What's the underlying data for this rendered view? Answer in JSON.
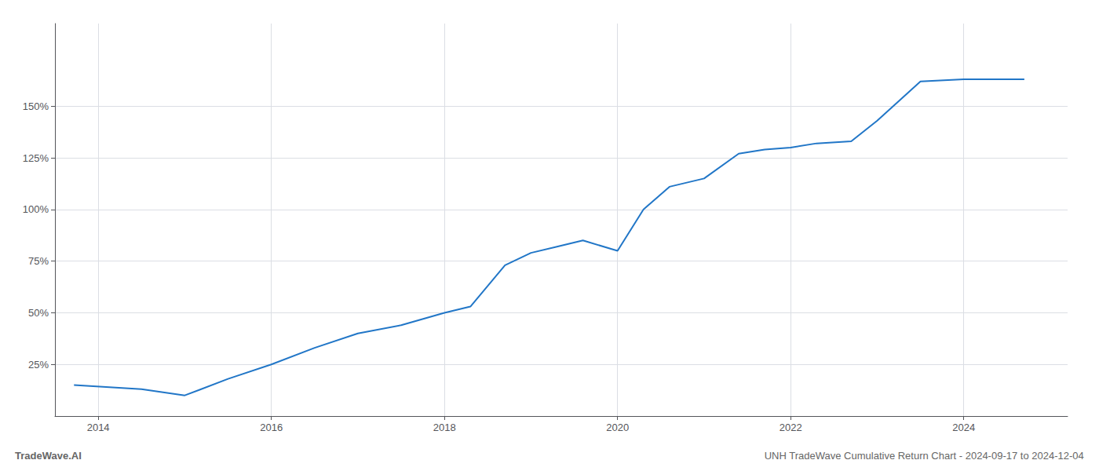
{
  "chart_data": {
    "type": "line",
    "title": "UNH TradeWave Cumulative Return Chart - 2024-09-17 to 2024-12-04",
    "annotations": [
      "TradeWave.AI"
    ],
    "x": [
      2013.72,
      2014.5,
      2015.0,
      2015.5,
      2016.0,
      2016.5,
      2017.0,
      2017.5,
      2018.0,
      2018.3,
      2018.7,
      2019.0,
      2019.3,
      2019.6,
      2020.0,
      2020.3,
      2020.6,
      2021.0,
      2021.4,
      2021.7,
      2022.0,
      2022.3,
      2022.7,
      2023.0,
      2023.5,
      2024.0,
      2024.7
    ],
    "values": [
      15,
      13,
      10,
      18,
      25,
      33,
      40,
      44,
      50,
      53,
      73,
      79,
      82,
      85,
      80,
      100,
      111,
      115,
      127,
      129,
      130,
      132,
      133,
      143,
      162,
      163,
      163
    ],
    "color": "#2176C7",
    "xlim": [
      2013.5,
      2025.2
    ],
    "ylim": [
      0,
      190
    ],
    "xticks": [
      2014,
      2016,
      2018,
      2020,
      2022,
      2024
    ],
    "yticks": [
      {
        "value": 25,
        "label": "25%"
      },
      {
        "value": 50,
        "label": "50%"
      },
      {
        "value": 75,
        "label": "75%"
      },
      {
        "value": 100,
        "label": "100%"
      },
      {
        "value": 125,
        "label": "125%"
      },
      {
        "value": 150,
        "label": "150%"
      }
    ],
    "grid": true
  }
}
